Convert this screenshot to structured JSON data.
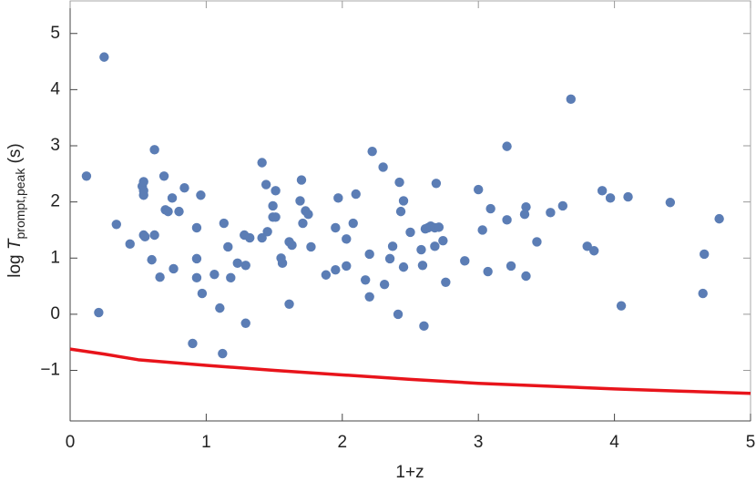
{
  "chart_data": {
    "type": "scatter",
    "xlabel": "1+z",
    "ylabel": [
      "log ",
      "T",
      "prompt,peak",
      " (s)"
    ],
    "xlim": [
      0,
      5
    ],
    "ylim": [
      -1.9,
      5.58
    ],
    "xticks": [
      0,
      1,
      2,
      3,
      4,
      5
    ],
    "yticks": [
      {
        "value": -1,
        "label": "−1"
      },
      0,
      1,
      2,
      3,
      4,
      5
    ],
    "series": [
      {
        "type": "scatter",
        "color": "#5b7db5",
        "x": [
          0.12,
          0.21,
          0.25,
          0.34,
          0.44,
          0.53,
          0.54,
          0.54,
          0.54,
          0.54,
          0.55,
          0.6,
          0.62,
          0.62,
          0.66,
          0.69,
          0.7,
          0.72,
          0.75,
          0.76,
          0.8,
          0.84,
          0.9,
          0.93,
          0.93,
          0.93,
          0.96,
          0.97,
          1.06,
          1.1,
          1.12,
          1.13,
          1.16,
          1.18,
          1.23,
          1.28,
          1.29,
          1.29,
          1.32,
          1.41,
          1.41,
          1.44,
          1.45,
          1.49,
          1.49,
          1.51,
          1.51,
          1.55,
          1.56,
          1.61,
          1.61,
          1.63,
          1.69,
          1.7,
          1.71,
          1.73,
          1.75,
          1.77,
          1.88,
          1.95,
          1.95,
          1.97,
          2.03,
          2.03,
          2.08,
          2.1,
          2.17,
          2.2,
          2.2,
          2.22,
          2.3,
          2.31,
          2.35,
          2.37,
          2.41,
          2.42,
          2.43,
          2.45,
          2.45,
          2.5,
          2.58,
          2.59,
          2.6,
          2.61,
          2.63,
          2.65,
          2.68,
          2.69,
          2.68,
          2.71,
          2.74,
          2.76,
          2.9,
          3.0,
          3.03,
          3.07,
          3.09,
          3.21,
          3.21,
          3.24,
          3.34,
          3.35,
          3.35,
          3.43,
          3.53,
          3.62,
          3.68,
          3.8,
          3.85,
          3.91,
          3.97,
          4.05,
          4.1,
          4.41,
          4.65,
          4.66,
          4.77
        ],
        "values": [
          2.46,
          0.03,
          4.58,
          1.6,
          1.25,
          2.28,
          2.12,
          2.36,
          2.2,
          1.41,
          1.38,
          0.97,
          2.93,
          1.41,
          0.66,
          2.46,
          1.86,
          1.83,
          2.07,
          0.81,
          1.83,
          2.25,
          -0.52,
          1.54,
          0.99,
          0.65,
          2.12,
          0.37,
          0.71,
          0.11,
          -0.7,
          1.62,
          1.2,
          0.65,
          0.91,
          1.41,
          -0.16,
          0.87,
          1.36,
          2.7,
          1.36,
          2.31,
          1.47,
          1.93,
          1.73,
          1.73,
          2.2,
          1.0,
          0.91,
          1.29,
          0.18,
          1.23,
          2.02,
          2.39,
          1.62,
          1.84,
          1.78,
          1.2,
          0.7,
          1.54,
          0.79,
          2.07,
          1.34,
          0.86,
          1.62,
          2.14,
          0.61,
          1.07,
          0.31,
          2.9,
          2.62,
          0.53,
          0.99,
          1.21,
          0.0,
          2.35,
          1.83,
          0.84,
          2.02,
          1.46,
          1.15,
          0.87,
          -0.21,
          1.52,
          1.54,
          1.57,
          1.54,
          2.33,
          1.21,
          1.55,
          1.31,
          0.57,
          0.95,
          2.22,
          1.5,
          0.76,
          1.88,
          2.99,
          1.68,
          0.86,
          1.78,
          1.91,
          0.68,
          1.29,
          1.81,
          1.93,
          3.83,
          1.21,
          1.13,
          2.2,
          2.07,
          0.15,
          2.09,
          1.99,
          0.37,
          1.07,
          1.7
        ]
      },
      {
        "type": "line",
        "color": "#e8141b",
        "x": [
          0,
          0.25,
          0.5,
          1,
          1.5,
          2,
          2.5,
          3,
          3.5,
          4,
          4.5,
          5
        ],
        "values": [
          -0.62,
          -0.71,
          -0.81,
          -0.91,
          -1.0,
          -1.08,
          -1.16,
          -1.23,
          -1.28,
          -1.33,
          -1.37,
          -1.41
        ]
      }
    ]
  }
}
